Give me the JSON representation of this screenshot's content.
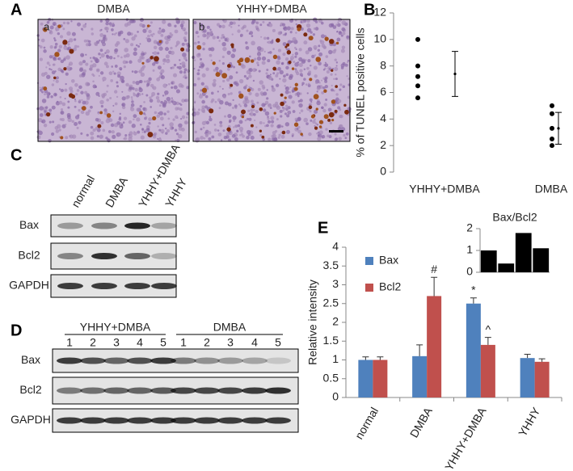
{
  "panels": {
    "A": {
      "label": "A",
      "images": [
        {
          "title": "DMBA",
          "tag": "a"
        },
        {
          "title": "YHHY+DMBA",
          "tag": "b"
        }
      ]
    },
    "C": {
      "label": "C",
      "lanes": [
        "normal",
        "DMBA",
        "YHHY+DMBA",
        "YHHY"
      ],
      "rows": [
        "Bax",
        "Bcl2",
        "GAPDH"
      ]
    },
    "D": {
      "label": "D",
      "groups": [
        "YHHY+DMBA",
        "DMBA"
      ],
      "lanes": [
        "1",
        "2",
        "3",
        "4",
        "5",
        "1",
        "2",
        "3",
        "4",
        "5"
      ],
      "rows": [
        "Bax",
        "Bcl2",
        "GAPDH"
      ]
    }
  },
  "chart_data": [
    {
      "type": "dot",
      "panel_label": "B",
      "y_label": "% of TUNEL positive cells",
      "categories": [
        "YHHY+DMBA",
        "DMBA"
      ],
      "points": [
        [
          10.0,
          8.0,
          7.2,
          6.5,
          5.6
        ],
        [
          5.0,
          4.4,
          3.3,
          2.5,
          2.0
        ]
      ],
      "means": [
        7.4,
        3.3
      ],
      "errors": [
        1.7,
        1.2
      ],
      "color": "#000000",
      "ylim": [
        0,
        12
      ],
      "yticks": [
        0,
        2,
        4,
        6,
        8,
        10,
        12
      ],
      "grid": false
    },
    {
      "type": "bar",
      "panel_label": "E",
      "y_label": "Relative intensity",
      "categories": [
        "normal",
        "DMBA",
        "YHHY+DMBA",
        "YHHY"
      ],
      "series": [
        {
          "name": "Bax",
          "color": "#4f81bd",
          "values": [
            1.0,
            1.1,
            2.5,
            1.05
          ],
          "errors": [
            0.08,
            0.3,
            0.15,
            0.1
          ],
          "notes": [
            null,
            null,
            "*",
            null
          ]
        },
        {
          "name": "Bcl2",
          "color": "#c0504d",
          "values": [
            1.0,
            2.7,
            1.4,
            0.95
          ],
          "errors": [
            0.08,
            0.5,
            0.2,
            0.08
          ],
          "notes": [
            null,
            "#",
            "^",
            null
          ]
        }
      ],
      "ylim": [
        0,
        4
      ],
      "yticks": [
        0,
        0.5,
        1,
        1.5,
        2,
        2.5,
        3,
        3.5,
        4
      ],
      "legend": "upper left",
      "grid": false
    },
    {
      "type": "bar",
      "title": "Bax/Bcl2",
      "categories": [
        null,
        null,
        null,
        null
      ],
      "series": [
        {
          "color": "#000000",
          "values": [
            1.0,
            0.4,
            1.8,
            1.1
          ]
        }
      ],
      "ylim": [
        0,
        2
      ],
      "yticks": [
        0,
        1,
        2
      ],
      "grid": false
    }
  ]
}
